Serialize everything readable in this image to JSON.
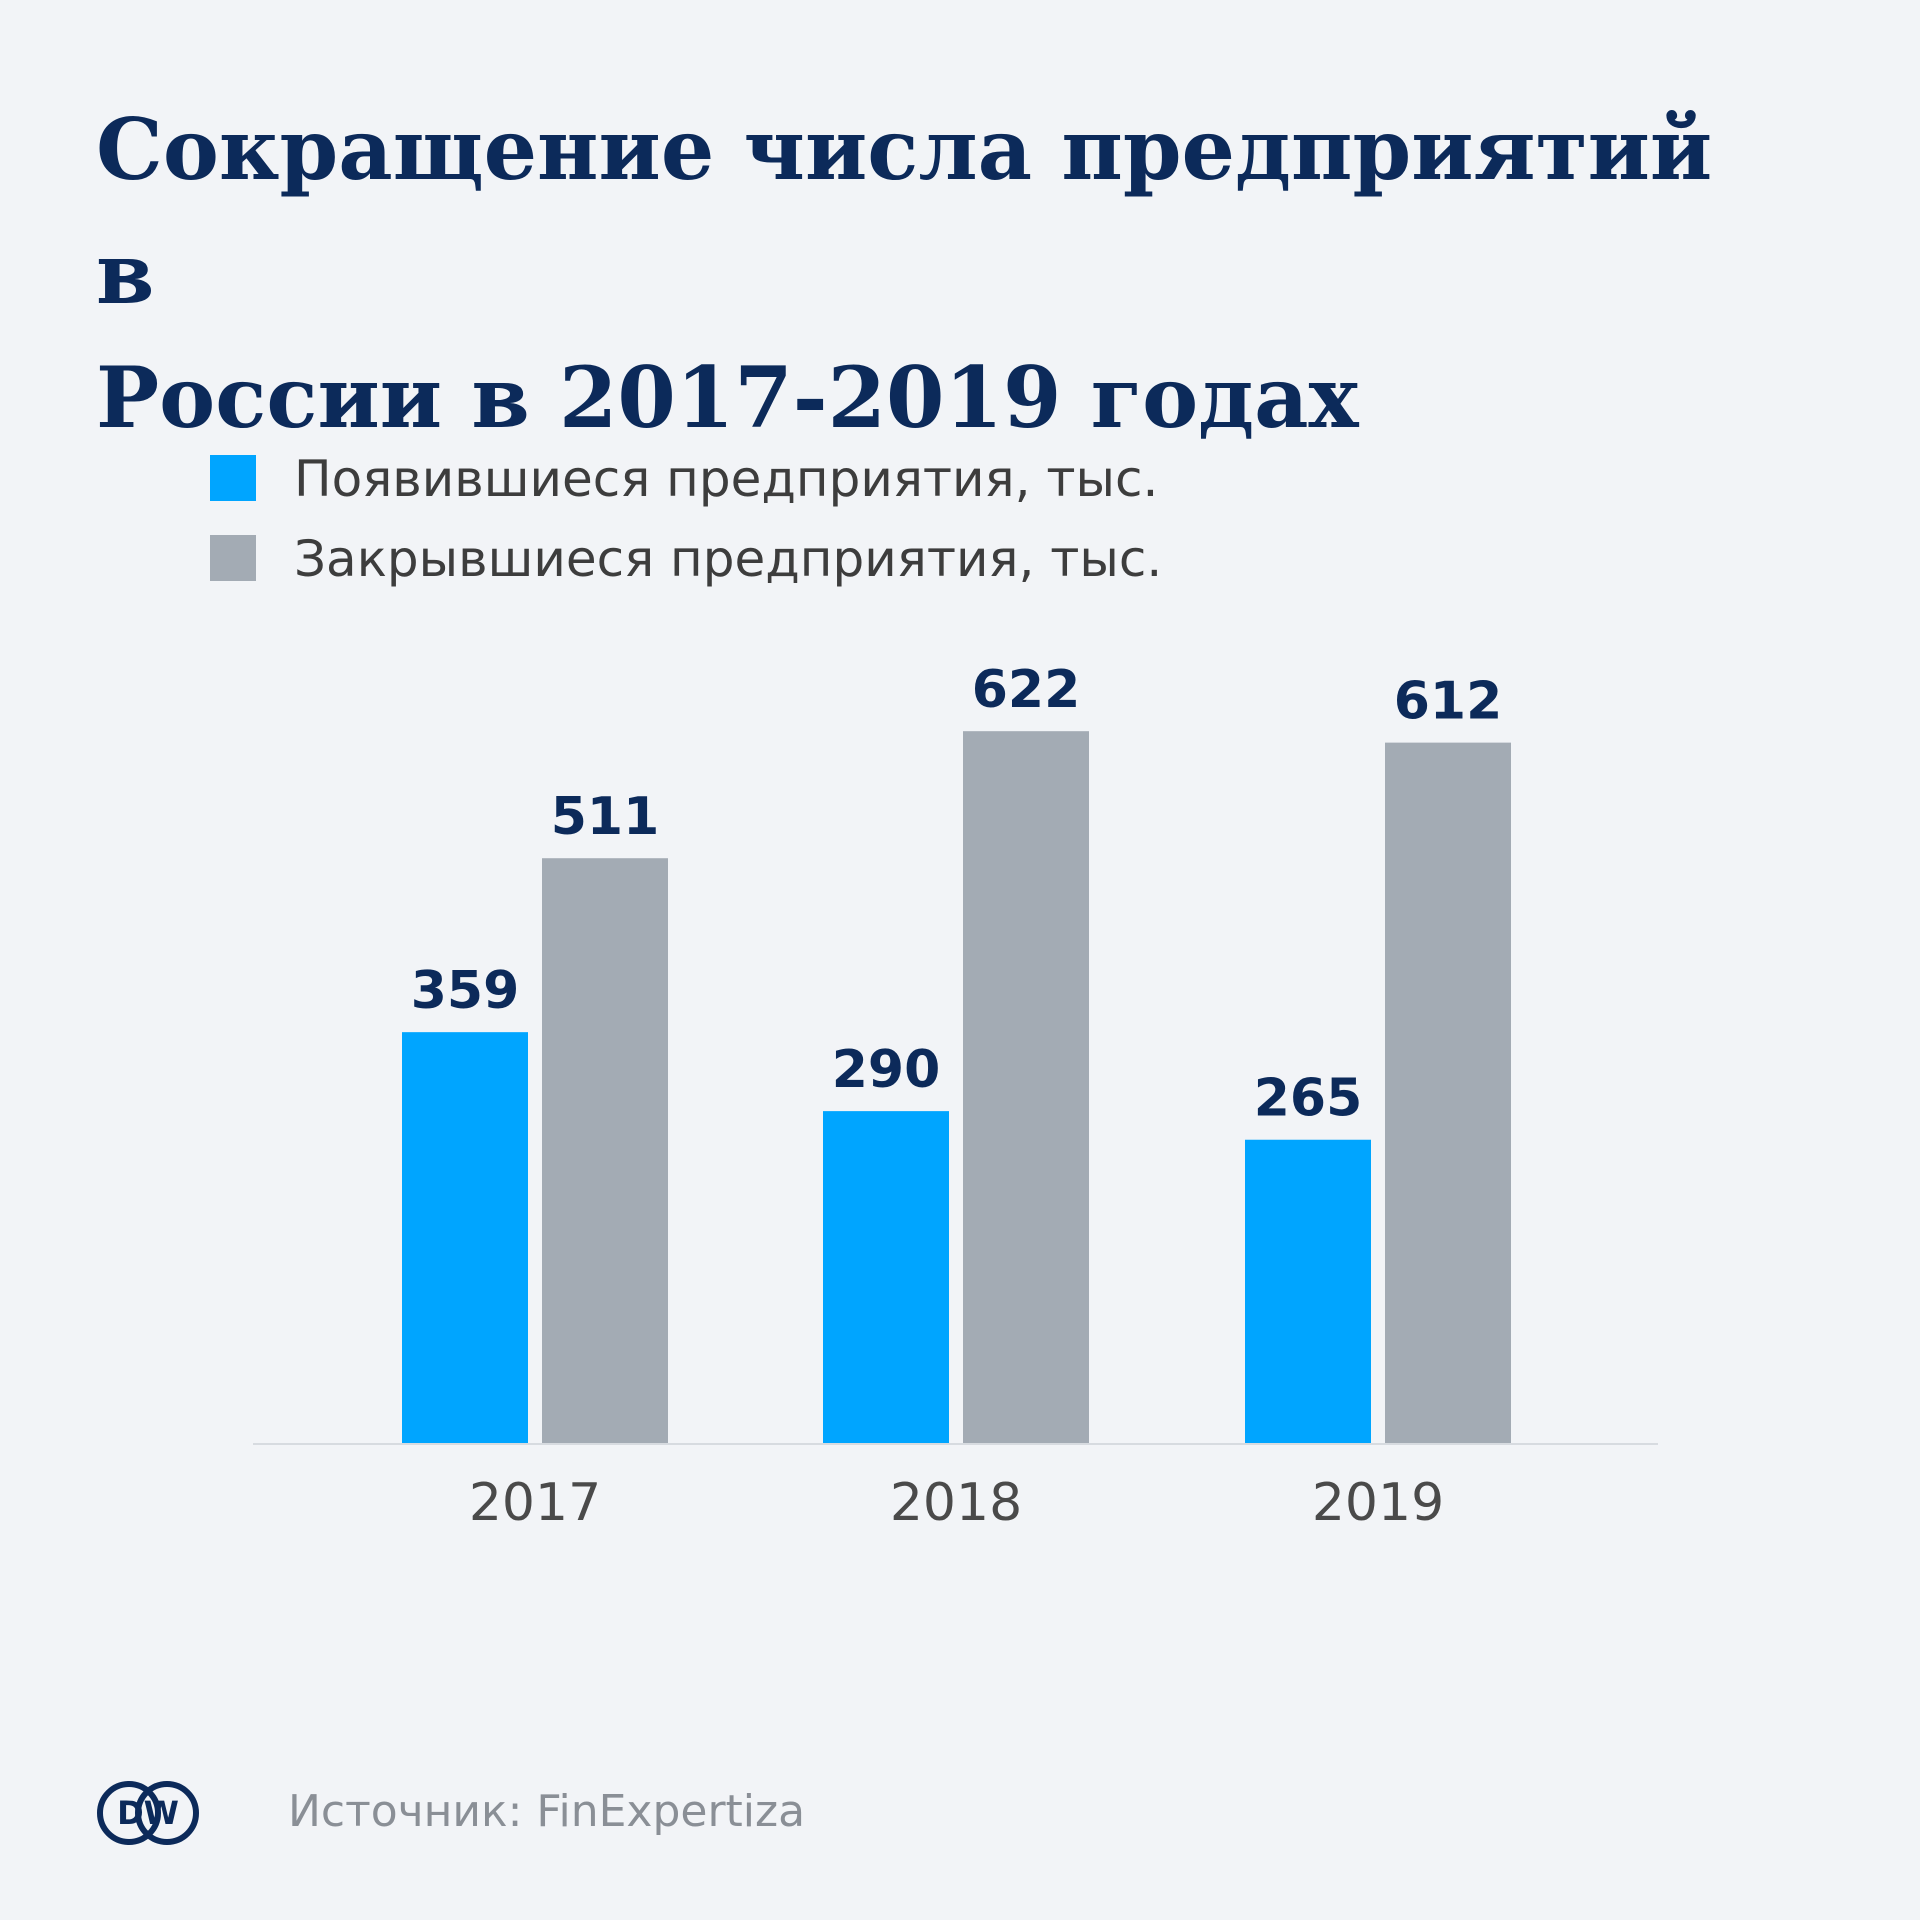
{
  "chart_data": {
    "type": "bar",
    "title": [
      "Сокращение числа предприятий в",
      "России в 2017-2019 годах"
    ],
    "categories": [
      "2017",
      "2018",
      "2019"
    ],
    "series": [
      {
        "name": "Появившиеся предприятия, тыс.",
        "values": [
          359,
          290,
          265
        ],
        "color": "#00a5ff"
      },
      {
        "name": "Закрывшиеся предприятия, тыс.",
        "values": [
          511,
          622,
          612
        ],
        "color": "#a3abb4"
      }
    ],
    "ylim": [
      0,
      700
    ],
    "grid": false,
    "legend_position": "top-left",
    "data_labels": true
  },
  "colors": {
    "background": "#f2f4f7",
    "title": "#0c2a5a",
    "data_label": "#0c2a5a",
    "tick_label": "#4a4a4a",
    "source": "#8a8f96",
    "logo": "#0c2a5a"
  },
  "logo": {
    "text": "DW"
  },
  "source": "Источник: FinExpertiza"
}
